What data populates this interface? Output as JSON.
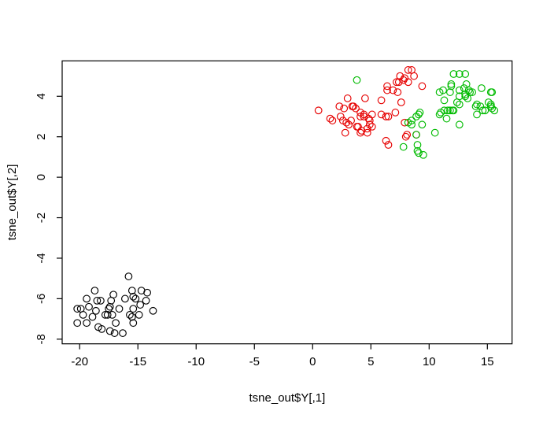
{
  "figure": {
    "background": "#ffffff"
  },
  "chart_data": {
    "type": "scatter",
    "title": "",
    "xlabel": "tsne_out$Y[,1]",
    "ylabel": "tsne_out$Y[,2]",
    "xlim": [
      -21.5,
      17.12
    ],
    "ylim": [
      -8.23,
      5.75
    ],
    "x_ticks": [
      -20,
      -15,
      -10,
      -5,
      0,
      5,
      10,
      15
    ],
    "y_ticks": [
      -8,
      -6,
      -4,
      -2,
      0,
      2,
      4
    ],
    "grid": false,
    "legend_position": "none",
    "marker": "open-circle",
    "marker_radius": 4.3,
    "axis_color": "#000000",
    "series": [
      {
        "name": "cluster-black",
        "color": "#000000",
        "points": [
          [
            -15.8,
            -4.9
          ],
          [
            -18.7,
            -5.6
          ],
          [
            -15.5,
            -5.6
          ],
          [
            -14.7,
            -5.6
          ],
          [
            -14.2,
            -5.7
          ],
          [
            -17.1,
            -5.8
          ],
          [
            -19.4,
            -6.0
          ],
          [
            -18.5,
            -6.1
          ],
          [
            -18.2,
            -6.1
          ],
          [
            -17.3,
            -6.1
          ],
          [
            -16.1,
            -6.0
          ],
          [
            -15.4,
            -5.9
          ],
          [
            -15.2,
            -6.0
          ],
          [
            -14.3,
            -6.1
          ],
          [
            -14.8,
            -6.3
          ],
          [
            -19.2,
            -6.4
          ],
          [
            -20.2,
            -6.5
          ],
          [
            -19.9,
            -6.5
          ],
          [
            -18.6,
            -6.6
          ],
          [
            -17.5,
            -6.5
          ],
          [
            -17.4,
            -6.4
          ],
          [
            -16.6,
            -6.5
          ],
          [
            -15.4,
            -6.5
          ],
          [
            -19.7,
            -6.8
          ],
          [
            -18.9,
            -6.9
          ],
          [
            -17.8,
            -6.8
          ],
          [
            -17.6,
            -6.8
          ],
          [
            -17.2,
            -6.8
          ],
          [
            -15.7,
            -6.8
          ],
          [
            -15.5,
            -6.9
          ],
          [
            -14.9,
            -6.8
          ],
          [
            -13.7,
            -6.6
          ],
          [
            -20.2,
            -7.2
          ],
          [
            -19.4,
            -7.2
          ],
          [
            -18.4,
            -7.4
          ],
          [
            -18.1,
            -7.5
          ],
          [
            -16.9,
            -7.2
          ],
          [
            -15.4,
            -7.2
          ],
          [
            -17.4,
            -7.6
          ],
          [
            -17.0,
            -7.7
          ],
          [
            -16.3,
            -7.7
          ]
        ]
      },
      {
        "name": "cluster-red",
        "color": "#e60000",
        "points": [
          [
            8.2,
            5.3
          ],
          [
            8.5,
            5.3
          ],
          [
            8.7,
            5.0
          ],
          [
            7.5,
            5.0
          ],
          [
            7.9,
            4.9
          ],
          [
            7.8,
            4.8
          ],
          [
            7.2,
            4.7
          ],
          [
            7.4,
            4.7
          ],
          [
            8.2,
            4.7
          ],
          [
            9.4,
            4.5
          ],
          [
            6.4,
            4.5
          ],
          [
            6.4,
            4.3
          ],
          [
            6.9,
            4.3
          ],
          [
            7.3,
            4.2
          ],
          [
            3.0,
            3.9
          ],
          [
            4.5,
            3.9
          ],
          [
            5.9,
            3.8
          ],
          [
            7.6,
            3.7
          ],
          [
            2.3,
            3.5
          ],
          [
            2.7,
            3.4
          ],
          [
            3.4,
            3.5
          ],
          [
            3.5,
            3.5
          ],
          [
            3.7,
            3.4
          ],
          [
            0.5,
            3.3
          ],
          [
            7.1,
            3.2
          ],
          [
            4.1,
            3.2
          ],
          [
            4.4,
            3.1
          ],
          [
            4.1,
            3.0
          ],
          [
            4.4,
            3.0
          ],
          [
            5.1,
            3.1
          ],
          [
            5.9,
            3.1
          ],
          [
            6.3,
            3.0
          ],
          [
            6.5,
            3.0
          ],
          [
            2.4,
            3.0
          ],
          [
            1.5,
            2.9
          ],
          [
            1.7,
            2.8
          ],
          [
            2.6,
            2.8
          ],
          [
            2.9,
            2.7
          ],
          [
            3.1,
            2.6
          ],
          [
            3.3,
            2.8
          ],
          [
            4.8,
            2.9
          ],
          [
            4.9,
            2.8
          ],
          [
            4.9,
            2.6
          ],
          [
            5.1,
            2.5
          ],
          [
            3.8,
            2.5
          ],
          [
            3.9,
            2.5
          ],
          [
            4.2,
            2.3
          ],
          [
            2.8,
            2.2
          ],
          [
            4.1,
            2.2
          ],
          [
            4.7,
            2.4
          ],
          [
            4.7,
            2.2
          ],
          [
            7.9,
            2.7
          ],
          [
            8.1,
            2.1
          ],
          [
            8.0,
            2.0
          ],
          [
            8.9,
            2.1
          ],
          [
            6.3,
            1.8
          ],
          [
            6.5,
            1.6
          ]
        ]
      },
      {
        "name": "cluster-green",
        "color": "#00bb00",
        "points": [
          [
            3.8,
            4.8
          ],
          [
            12.1,
            5.1
          ],
          [
            12.6,
            5.1
          ],
          [
            13.1,
            5.1
          ],
          [
            11.9,
            4.6
          ],
          [
            11.9,
            4.5
          ],
          [
            13.2,
            4.6
          ],
          [
            11.2,
            4.3
          ],
          [
            11.8,
            4.2
          ],
          [
            12.6,
            4.3
          ],
          [
            13.0,
            4.4
          ],
          [
            10.9,
            4.2
          ],
          [
            13.1,
            4.1
          ],
          [
            13.5,
            4.2
          ],
          [
            13.7,
            4.2
          ],
          [
            13.4,
            4.3
          ],
          [
            14.5,
            4.4
          ],
          [
            15.3,
            4.2
          ],
          [
            15.4,
            4.2
          ],
          [
            11.3,
            3.8
          ],
          [
            12.6,
            4.0
          ],
          [
            12.4,
            3.7
          ],
          [
            12.6,
            3.6
          ],
          [
            13.1,
            4.0
          ],
          [
            13.3,
            3.9
          ],
          [
            14.0,
            3.5
          ],
          [
            14.1,
            3.6
          ],
          [
            14.4,
            3.5
          ],
          [
            15.1,
            3.7
          ],
          [
            15.3,
            3.6
          ],
          [
            15.3,
            3.5
          ],
          [
            15.4,
            3.4
          ],
          [
            15.6,
            3.3
          ],
          [
            14.6,
            3.3
          ],
          [
            14.8,
            3.3
          ],
          [
            14.1,
            3.1
          ],
          [
            11.3,
            3.3
          ],
          [
            11.6,
            3.3
          ],
          [
            11.8,
            3.3
          ],
          [
            12.0,
            3.3
          ],
          [
            12.1,
            3.3
          ],
          [
            10.9,
            3.1
          ],
          [
            11.0,
            3.2
          ],
          [
            11.5,
            2.9
          ],
          [
            12.6,
            2.6
          ],
          [
            10.5,
            2.2
          ],
          [
            9.4,
            2.6
          ],
          [
            8.2,
            2.7
          ],
          [
            8.5,
            2.6
          ],
          [
            8.5,
            2.8
          ],
          [
            8.9,
            3.0
          ],
          [
            9.1,
            3.1
          ],
          [
            9.2,
            3.2
          ],
          [
            8.9,
            2.1
          ],
          [
            7.8,
            1.5
          ],
          [
            9.0,
            1.6
          ],
          [
            9.0,
            1.3
          ],
          [
            9.1,
            1.2
          ],
          [
            9.5,
            1.1
          ]
        ]
      }
    ]
  }
}
